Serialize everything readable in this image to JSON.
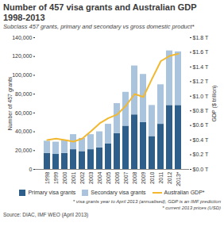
{
  "chart_data": {
    "type": "bar",
    "title": "Number of 457 visa grants and Australian GDP 1998-2013",
    "subtitle": "Subclass 457 grants, primary and secondary vs gross domestic product*",
    "stacked": true,
    "categories": [
      "1998",
      "1999",
      "2000",
      "2001",
      "2002",
      "2003",
      "2004",
      "2005",
      "2006",
      "2007",
      "2008",
      "2009",
      "2010",
      "2011",
      "2012",
      "2013*"
    ],
    "series": [
      {
        "name": "Primary visa grants",
        "color": "#2e5f8a",
        "type": "bar",
        "values": [
          17000,
          16000,
          17000,
          21000,
          19000,
          21000,
          23000,
          27000,
          38000,
          46000,
          58000,
          50000,
          35000,
          48000,
          68000,
          68000
        ]
      },
      {
        "name": "Secondary visa grants",
        "color": "#a9c4dc",
        "type": "bar",
        "values": [
          13000,
          13000,
          14000,
          16000,
          14000,
          16000,
          17000,
          21000,
          32000,
          36000,
          52000,
          51000,
          33000,
          42000,
          58000,
          57000
        ]
      },
      {
        "name": "Australian GDP*",
        "color": "#f2b830",
        "type": "line",
        "axis": "y2",
        "values": [
          0.4,
          0.42,
          0.4,
          0.38,
          0.42,
          0.52,
          0.63,
          0.7,
          0.75,
          0.87,
          1.03,
          0.99,
          1.24,
          1.48,
          1.55,
          1.58
        ]
      }
    ],
    "ylabel": "Number of 457 grants",
    "y2label": "GDP ($ trillion)",
    "ylim": [
      0,
      140000
    ],
    "yticks": [
      0,
      {
        "value": 20000,
        "label": "20,000"
      },
      {
        "value": 40000,
        "label": "40,000"
      },
      {
        "value": 60000,
        "label": "60,000"
      },
      {
        "value": 80000,
        "label": "80,000"
      },
      {
        "value": 100000,
        "label": "100,000"
      },
      {
        "value": 120000,
        "label": "120,000"
      },
      {
        "value": 140000,
        "label": "140,000"
      }
    ],
    "y2lim": [
      0,
      1.8
    ],
    "y2ticks": [
      {
        "value": 0,
        "label": "$0.0 T"
      },
      {
        "value": 0.2,
        "label": "$0.2 T"
      },
      {
        "value": 0.4,
        "label": "$0.4 T"
      },
      {
        "value": 0.6,
        "label": "$0.6 T"
      },
      {
        "value": 0.8,
        "label": "$0.8 T"
      },
      {
        "value": 1.0,
        "label": "$1.0 T"
      },
      {
        "value": 1.2,
        "label": "$1.2 T"
      },
      {
        "value": 1.4,
        "label": "$1.4 T"
      },
      {
        "value": 1.6,
        "label": "$1.6 T"
      },
      {
        "value": 1.8,
        "label": "$1.8 T"
      }
    ],
    "grid": false,
    "legend": "bottom",
    "notes": [
      "* visa grants year to April 2013 (annualised), GDP is an IMF prediction",
      "* current 2013 prices (USD)"
    ],
    "source": "Source: DIAC, IMF WEO (April 2013)"
  }
}
